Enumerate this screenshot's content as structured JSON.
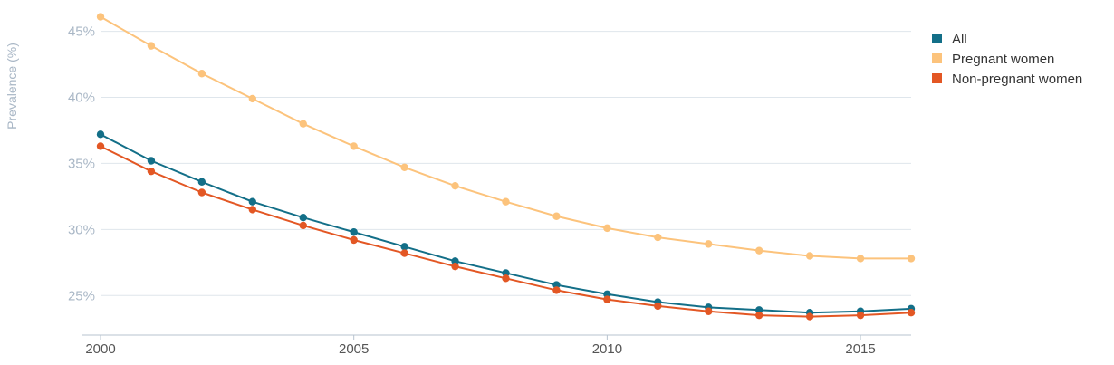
{
  "chart_data": {
    "type": "line",
    "xlabel": "",
    "ylabel": "Prevalence (%)",
    "x": [
      2000,
      2001,
      2002,
      2003,
      2004,
      2005,
      2006,
      2007,
      2008,
      2009,
      2010,
      2011,
      2012,
      2013,
      2014,
      2015,
      2016
    ],
    "xlim": [
      2000,
      2016
    ],
    "ylim": [
      22,
      46
    ],
    "xticks": [
      2000,
      2005,
      2010,
      2015
    ],
    "xtick_labels": [
      "2000",
      "2005",
      "2010",
      "2015"
    ],
    "yticks": [
      25,
      30,
      35,
      40,
      45
    ],
    "ytick_labels": [
      "25%",
      "30%",
      "35%",
      "40%",
      "45%"
    ],
    "grid": true,
    "legend_position": "top-right",
    "series": [
      {
        "name": "All",
        "color": "#136f88",
        "values": [
          37.2,
          35.2,
          33.6,
          32.1,
          30.9,
          29.8,
          28.7,
          27.6,
          26.7,
          25.8,
          25.1,
          24.5,
          24.1,
          23.9,
          23.7,
          23.8,
          24.0
        ]
      },
      {
        "name": "Pregnant women",
        "color": "#fcc37c",
        "values": [
          46.1,
          43.9,
          41.8,
          39.9,
          38.0,
          36.3,
          34.7,
          33.3,
          32.1,
          31.0,
          30.1,
          29.4,
          28.9,
          28.4,
          28.0,
          27.8,
          27.8
        ]
      },
      {
        "name": "Non-pregnant women",
        "color": "#e35724",
        "values": [
          36.3,
          34.4,
          32.8,
          31.5,
          30.3,
          29.2,
          28.2,
          27.2,
          26.3,
          25.4,
          24.7,
          24.2,
          23.8,
          23.5,
          23.4,
          23.5,
          23.7
        ]
      }
    ]
  }
}
